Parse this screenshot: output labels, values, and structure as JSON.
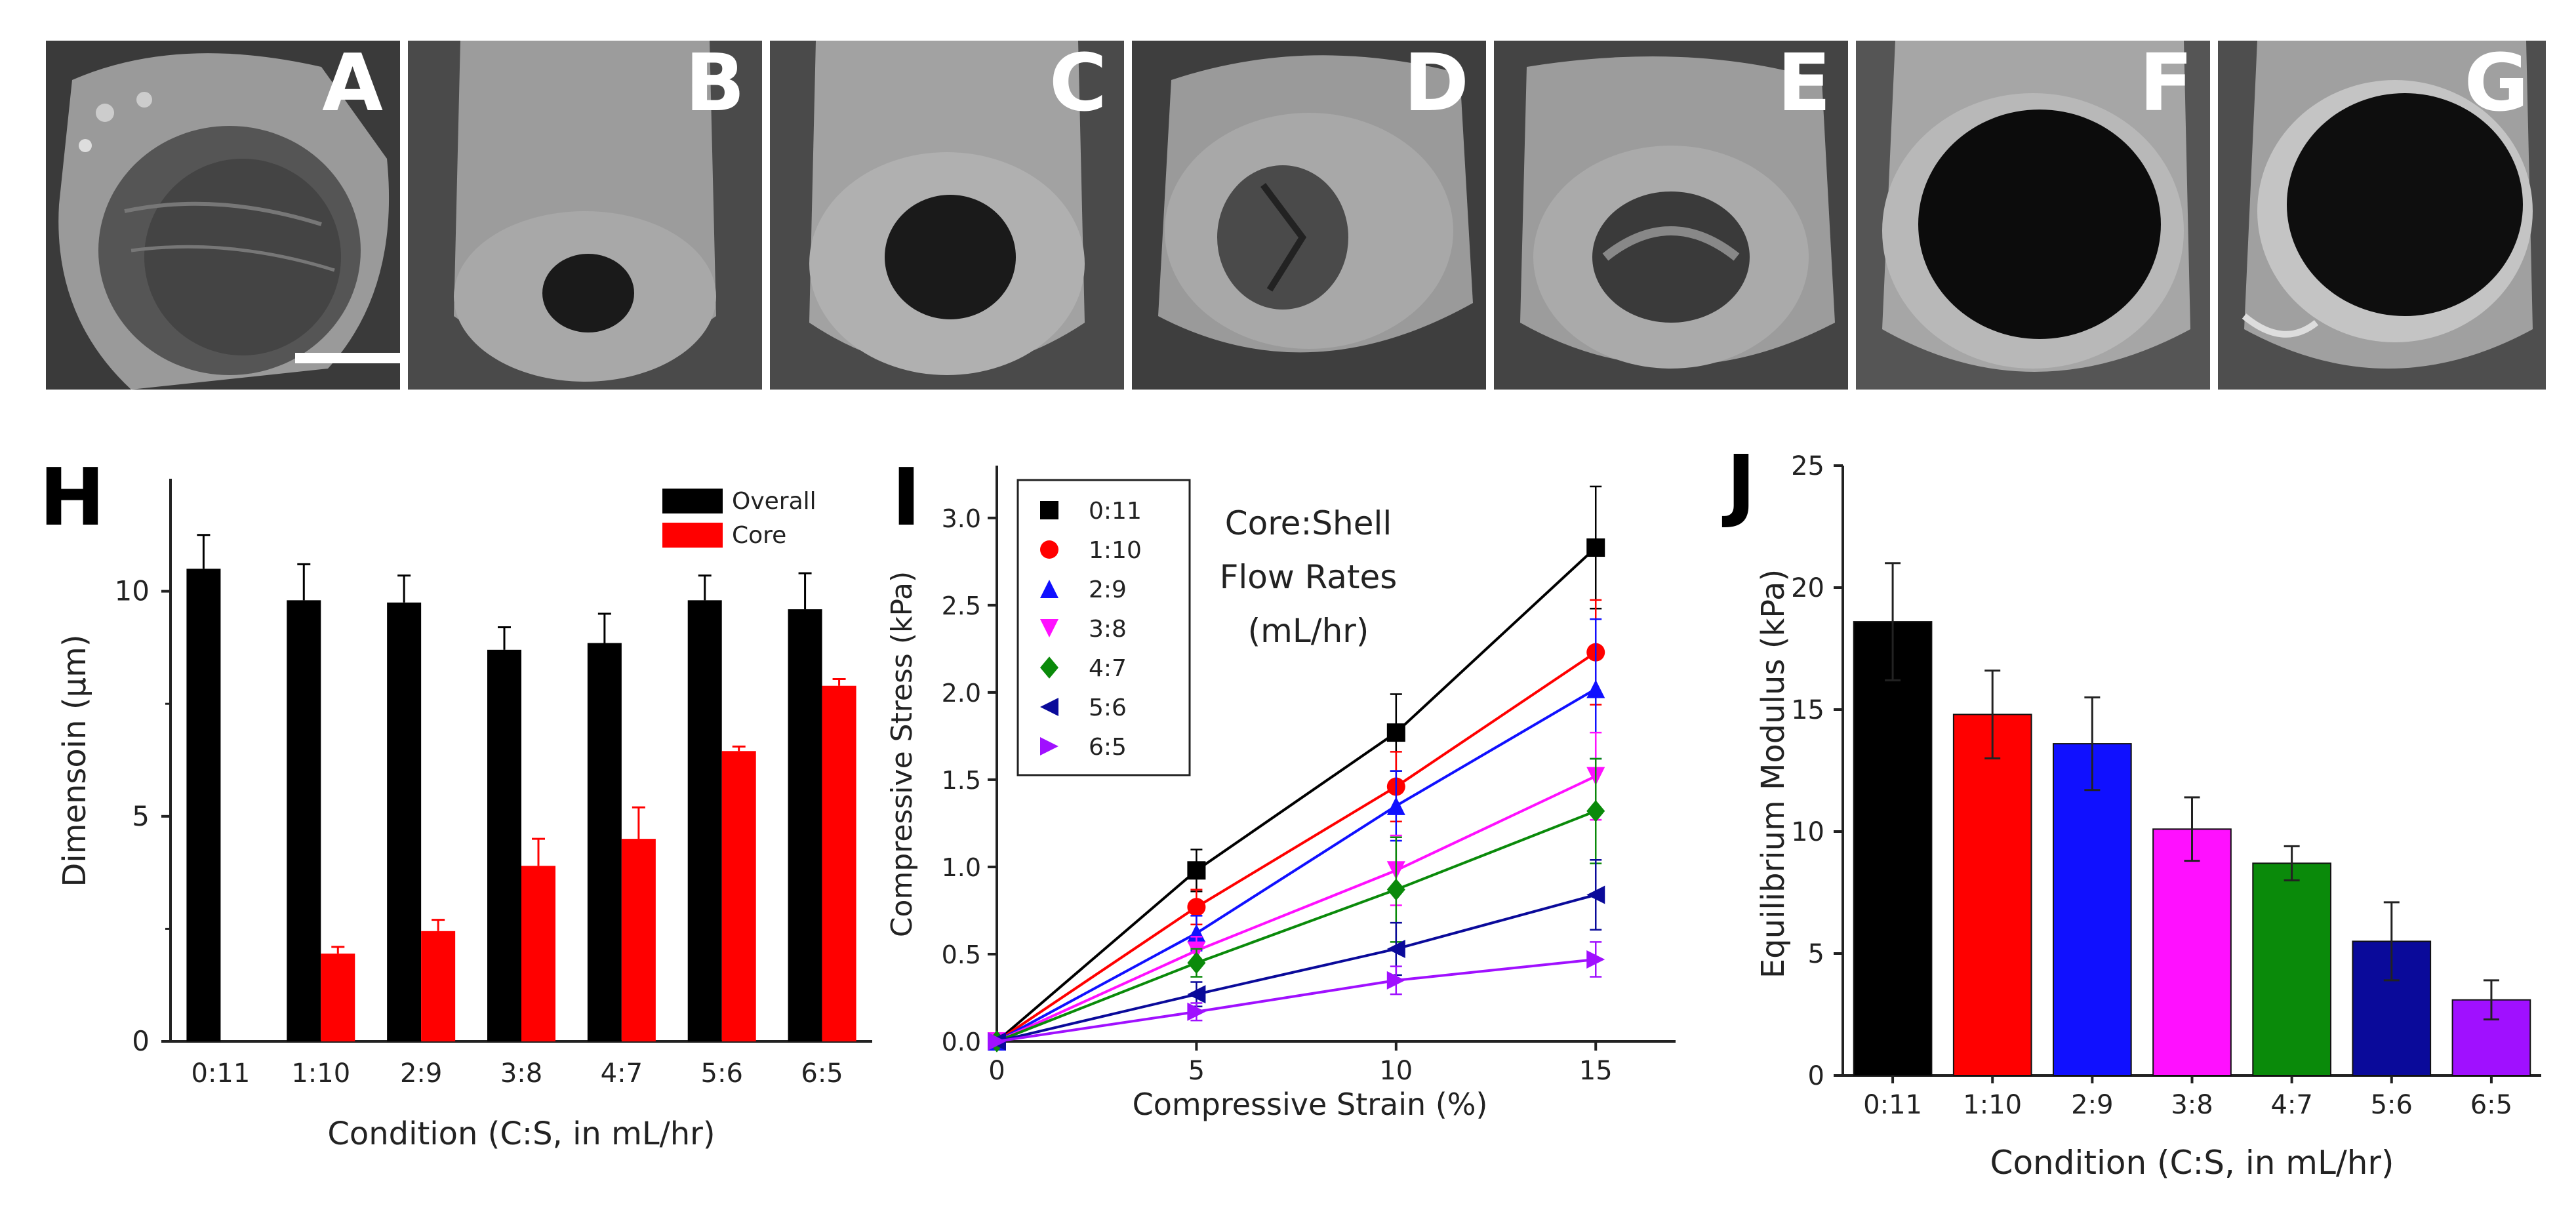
{
  "sem_panels": [
    {
      "letter": "A",
      "style": "solid"
    },
    {
      "letter": "B",
      "style": "small-lumen"
    },
    {
      "letter": "C",
      "style": "medium-lumen"
    },
    {
      "letter": "D",
      "style": "collapsed-lumen"
    },
    {
      "letter": "E",
      "style": "folded-lumen"
    },
    {
      "letter": "F",
      "style": "large-lumen"
    },
    {
      "letter": "G",
      "style": "thin-wall"
    }
  ],
  "colors": {
    "black": "#000000",
    "red": "#ff0000",
    "blue": "#1010ff",
    "magenta": "#ff10ff",
    "green": "#0a8a0a",
    "navy": "#0a0a9a",
    "purple": "#a010ff",
    "axis": "#222222"
  },
  "chart_data": [
    {
      "panel": "H",
      "type": "bar",
      "categories": [
        "0:11",
        "1:10",
        "2:9",
        "3:8",
        "4:7",
        "5:6",
        "6:5"
      ],
      "series": [
        {
          "name": "Overall",
          "color": "#000000",
          "values": [
            10.5,
            9.8,
            9.75,
            8.7,
            8.85,
            9.8,
            9.6
          ],
          "errors": [
            0.75,
            0.8,
            0.6,
            0.5,
            0.65,
            0.55,
            0.8
          ]
        },
        {
          "name": "Core",
          "color": "#ff0000",
          "values": [
            null,
            1.95,
            2.45,
            3.9,
            4.5,
            6.45,
            7.9
          ],
          "errors": [
            0,
            0.15,
            0.25,
            0.6,
            0.7,
            0.1,
            0.15
          ]
        }
      ],
      "ylim": [
        0,
        12.5
      ],
      "yticks": [
        0,
        5,
        10
      ],
      "ytick_labels": [
        "0",
        "5",
        "10"
      ],
      "ylabel": "Dimensoin (µm)",
      "xlabel": "Condition (C:S, in mL/hr)",
      "legend": [
        "Overall",
        "Core"
      ]
    },
    {
      "panel": "I",
      "type": "line",
      "x": [
        0,
        5,
        10,
        15
      ],
      "xticks": [
        0,
        5,
        10,
        15
      ],
      "xlim": [
        0,
        17
      ],
      "ylim": [
        0,
        3.3
      ],
      "yticks": [
        0.0,
        0.5,
        1.0,
        1.5,
        2.0,
        2.5,
        3.0
      ],
      "ytick_labels": [
        "0.0",
        "0.5",
        "1.0",
        "1.5",
        "2.0",
        "2.5",
        "3.0"
      ],
      "series": [
        {
          "name": "0:11",
          "color": "#000000",
          "marker": "square",
          "values": [
            0,
            0.98,
            1.77,
            2.83
          ],
          "errors": [
            0,
            0.12,
            0.22,
            0.35
          ]
        },
        {
          "name": "1:10",
          "color": "#ff0000",
          "marker": "circle",
          "values": [
            0,
            0.77,
            1.46,
            2.23
          ],
          "errors": [
            0,
            0.1,
            0.2,
            0.3
          ]
        },
        {
          "name": "2:9",
          "color": "#1010ff",
          "marker": "triangle-up",
          "values": [
            0,
            0.62,
            1.35,
            2.02
          ],
          "errors": [
            0,
            0.1,
            0.2,
            0.4
          ]
        },
        {
          "name": "3:8",
          "color": "#ff10ff",
          "marker": "triangle-down",
          "values": [
            0,
            0.52,
            0.98,
            1.52
          ],
          "errors": [
            0,
            0.08,
            0.2,
            0.25
          ]
        },
        {
          "name": "4:7",
          "color": "#0a8a0a",
          "marker": "diamond",
          "values": [
            0,
            0.45,
            0.87,
            1.32
          ],
          "errors": [
            0,
            0.08,
            0.3,
            0.3
          ]
        },
        {
          "name": "5:6",
          "color": "#0a0a9a",
          "marker": "triangle-left",
          "values": [
            0,
            0.27,
            0.53,
            0.84
          ],
          "errors": [
            0,
            0.07,
            0.15,
            0.2
          ]
        },
        {
          "name": "6:5",
          "color": "#a010ff",
          "marker": "triangle-right",
          "values": [
            0,
            0.17,
            0.35,
            0.47
          ],
          "errors": [
            0,
            0.05,
            0.08,
            0.1
          ]
        }
      ],
      "annotation": [
        "Core:Shell",
        "Flow Rates",
        "(mL/hr)"
      ],
      "ylabel": "Compressive Stress (kPa)",
      "xlabel": "Compressive Strain (%)"
    },
    {
      "panel": "J",
      "type": "bar",
      "categories": [
        "0:11",
        "1:10",
        "2:9",
        "3:8",
        "4:7",
        "5:6",
        "6:5"
      ],
      "values": [
        18.6,
        14.8,
        13.6,
        10.1,
        8.7,
        5.5,
        3.1
      ],
      "errors": [
        2.4,
        1.8,
        1.9,
        1.3,
        0.7,
        1.6,
        0.8
      ],
      "colors": [
        "#000000",
        "#ff0000",
        "#1010ff",
        "#ff10ff",
        "#0a8a0a",
        "#0a0a9a",
        "#a010ff"
      ],
      "ylim": [
        0,
        25
      ],
      "yticks": [
        0,
        5,
        10,
        15,
        20,
        25
      ],
      "ytick_labels": [
        "0",
        "5",
        "10",
        "15",
        "20",
        "25"
      ],
      "ylabel": "Equilibrium Modulus (kPa)",
      "xlabel": "Condition (C:S, in mL/hr)"
    }
  ]
}
